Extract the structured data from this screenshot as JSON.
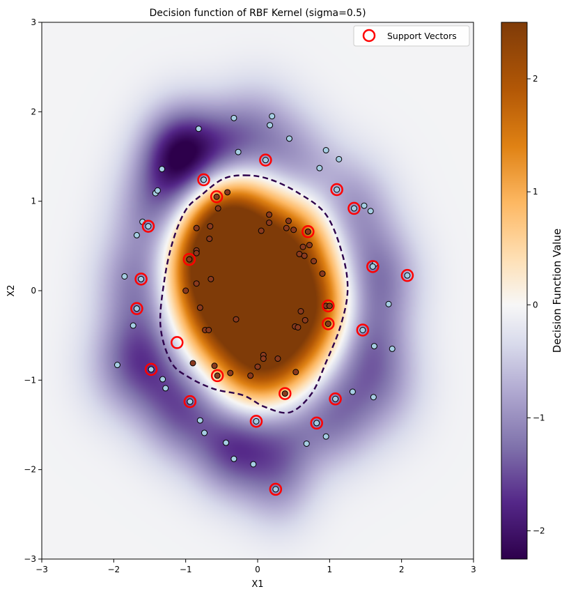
{
  "chart_data": {
    "type": "heatmap",
    "title": "Decision function of RBF Kernel (sigma=0.5)",
    "xlabel": "X1",
    "ylabel": "X2",
    "xlim": [
      -3,
      3
    ],
    "ylim": [
      -3,
      3
    ],
    "x_ticks": [
      -3,
      -2,
      -1,
      0,
      1,
      2,
      3
    ],
    "y_ticks": [
      -3,
      -2,
      -1,
      0,
      1,
      2,
      3
    ],
    "x_tick_labels": [
      "−3",
      "−2",
      "−1",
      "0",
      "1",
      "2",
      "3"
    ],
    "y_tick_labels": [
      "−3",
      "−2",
      "−1",
      "0",
      "1",
      "2",
      "3"
    ],
    "grid": false,
    "colormap": "PuOr_r",
    "colorbar": {
      "label": "Decision Function Value",
      "range": [
        -2.25,
        2.5
      ],
      "ticks": [
        -2,
        -1,
        0,
        1,
        2
      ],
      "tick_labels": [
        "−2",
        "−1",
        "0",
        "1",
        "2"
      ],
      "stops": [
        {
          "v": -2.25,
          "color": "#2d004b"
        },
        {
          "v": -1.75,
          "color": "#542788"
        },
        {
          "v": -1.25,
          "color": "#8073ac"
        },
        {
          "v": -0.75,
          "color": "#b2abd2"
        },
        {
          "v": -0.35,
          "color": "#d8daeb"
        },
        {
          "v": 0.0,
          "color": "#f7f7f7"
        },
        {
          "v": 0.4,
          "color": "#fee0b6"
        },
        {
          "v": 0.9,
          "color": "#fdb863"
        },
        {
          "v": 1.4,
          "color": "#e08214"
        },
        {
          "v": 1.9,
          "color": "#b35806"
        },
        {
          "v": 2.5,
          "color": "#7f3b08"
        }
      ]
    },
    "decision_boundary": {
      "level": 0,
      "style": "dashed",
      "color": "#2d004b",
      "points": [
        [
          -0.18,
          1.29
        ],
        [
          0.15,
          1.25
        ],
        [
          0.55,
          1.1
        ],
        [
          0.95,
          0.85
        ],
        [
          1.18,
          0.4
        ],
        [
          1.25,
          0.0
        ],
        [
          1.15,
          -0.4
        ],
        [
          0.95,
          -0.8
        ],
        [
          0.75,
          -1.15
        ],
        [
          0.45,
          -1.36
        ],
        [
          0.1,
          -1.3
        ],
        [
          -0.2,
          -1.17
        ],
        [
          -0.6,
          -1.1
        ],
        [
          -0.95,
          -0.97
        ],
        [
          -1.2,
          -0.8
        ],
        [
          -1.35,
          -0.4
        ],
        [
          -1.3,
          0.1
        ],
        [
          -1.18,
          0.55
        ],
        [
          -1.0,
          0.9
        ],
        [
          -0.78,
          1.07
        ],
        [
          -0.48,
          1.25
        ]
      ]
    },
    "legend": {
      "position": "top-right",
      "entries": [
        {
          "label": "Support Vectors",
          "marker": "open-circle",
          "color": "#ff0000"
        }
      ]
    },
    "classes": [
      {
        "name": "inner",
        "color": "#8a3a1e"
      },
      {
        "name": "outer",
        "color": "#a6cee3"
      }
    ],
    "points_inner": [
      [
        -0.95,
        0.35
      ],
      [
        -0.57,
        1.05
      ],
      [
        -0.42,
        1.1
      ],
      [
        -0.55,
        0.92
      ],
      [
        -0.85,
        0.7
      ],
      [
        -0.66,
        0.72
      ],
      [
        -0.67,
        0.58
      ],
      [
        -0.85,
        0.45
      ],
      [
        -0.85,
        0.42
      ],
      [
        -0.85,
        0.08
      ],
      [
        -1.0,
        0.0
      ],
      [
        -0.65,
        0.13
      ],
      [
        -0.8,
        -0.19
      ],
      [
        -0.73,
        -0.44
      ],
      [
        -0.68,
        -0.44
      ],
      [
        -0.3,
        -0.32
      ],
      [
        -0.9,
        -0.81
      ],
      [
        -0.6,
        -0.84
      ],
      [
        -0.56,
        -0.95
      ],
      [
        -0.38,
        -0.92
      ],
      [
        -0.1,
        -0.95
      ],
      [
        0.0,
        -0.85
      ],
      [
        0.08,
        -0.72
      ],
      [
        0.08,
        -0.76
      ],
      [
        0.28,
        -0.76
      ],
      [
        0.53,
        -0.91
      ],
      [
        0.38,
        -1.15
      ],
      [
        0.05,
        0.67
      ],
      [
        0.16,
        0.85
      ],
      [
        0.16,
        0.76
      ],
      [
        0.4,
        0.7
      ],
      [
        0.43,
        0.78
      ],
      [
        0.5,
        0.68
      ],
      [
        0.63,
        0.49
      ],
      [
        0.72,
        0.51
      ],
      [
        0.58,
        0.41
      ],
      [
        0.65,
        0.39
      ],
      [
        0.7,
        0.66
      ],
      [
        0.78,
        0.33
      ],
      [
        0.9,
        0.19
      ],
      [
        0.95,
        -0.17
      ],
      [
        0.98,
        -0.37
      ],
      [
        1.0,
        -0.17
      ],
      [
        0.6,
        -0.23
      ],
      [
        0.66,
        -0.33
      ],
      [
        0.52,
        -0.4
      ],
      [
        0.56,
        -0.41
      ]
    ],
    "points_outer": [
      [
        -0.82,
        1.81
      ],
      [
        -0.33,
        1.93
      ],
      [
        -0.27,
        1.55
      ],
      [
        0.17,
        1.85
      ],
      [
        0.2,
        1.95
      ],
      [
        0.44,
        1.7
      ],
      [
        0.95,
        1.57
      ],
      [
        0.86,
        1.37
      ],
      [
        1.13,
        1.47
      ],
      [
        1.1,
        1.13
      ],
      [
        1.34,
        0.92
      ],
      [
        1.48,
        0.95
      ],
      [
        1.57,
        0.89
      ],
      [
        1.63,
        0.3
      ],
      [
        1.6,
        0.27
      ],
      [
        2.08,
        0.17
      ],
      [
        1.82,
        -0.15
      ],
      [
        1.46,
        -0.44
      ],
      [
        1.62,
        -0.62
      ],
      [
        1.87,
        -0.65
      ],
      [
        1.32,
        -1.13
      ],
      [
        1.08,
        -1.21
      ],
      [
        1.61,
        -1.19
      ],
      [
        0.82,
        -1.48
      ],
      [
        0.68,
        -1.71
      ],
      [
        0.95,
        -1.63
      ],
      [
        -0.02,
        -1.46
      ],
      [
        -0.44,
        -1.7
      ],
      [
        -0.33,
        -1.88
      ],
      [
        -0.06,
        -1.94
      ],
      [
        0.25,
        -2.22
      ],
      [
        -0.94,
        -1.24
      ],
      [
        -0.8,
        -1.45
      ],
      [
        -0.74,
        -1.59
      ],
      [
        -1.32,
        -0.99
      ],
      [
        -1.28,
        -1.09
      ],
      [
        -1.48,
        -0.88
      ],
      [
        -1.68,
        -0.2
      ],
      [
        -1.73,
        -0.39
      ],
      [
        -1.95,
        -0.83
      ],
      [
        -1.62,
        0.13
      ],
      [
        -1.85,
        0.16
      ],
      [
        -1.52,
        0.72
      ],
      [
        -1.6,
        0.77
      ],
      [
        -1.68,
        0.62
      ],
      [
        -1.42,
        1.09
      ],
      [
        -1.39,
        1.12
      ],
      [
        -1.33,
        1.36
      ],
      [
        -0.75,
        1.24
      ],
      [
        0.11,
        1.46
      ]
    ],
    "support_vectors": [
      [
        0.11,
        1.46
      ],
      [
        -0.75,
        1.24
      ],
      [
        -0.57,
        1.05
      ],
      [
        1.1,
        1.13
      ],
      [
        1.34,
        0.92
      ],
      [
        -1.52,
        0.72
      ],
      [
        0.7,
        0.66
      ],
      [
        -0.95,
        0.35
      ],
      [
        1.6,
        0.27
      ],
      [
        2.08,
        0.17
      ],
      [
        -1.62,
        0.13
      ],
      [
        -1.68,
        -0.2
      ],
      [
        0.98,
        -0.17
      ],
      [
        0.98,
        -0.37
      ],
      [
        1.46,
        -0.44
      ],
      [
        -1.12,
        -0.58
      ],
      [
        -1.48,
        -0.88
      ],
      [
        -0.56,
        -0.95
      ],
      [
        0.38,
        -1.15
      ],
      [
        -0.94,
        -1.24
      ],
      [
        1.08,
        -1.21
      ],
      [
        -0.02,
        -1.46
      ],
      [
        0.82,
        -1.48
      ],
      [
        0.25,
        -2.22
      ]
    ],
    "field_bias": -0.05,
    "field_bumps": [
      {
        "x": -0.45,
        "y": 0.7,
        "w": 2.6,
        "s": 0.45
      },
      {
        "x": 0.0,
        "y": 0.05,
        "w": 2.1,
        "s": 0.6
      },
      {
        "x": 0.45,
        "y": -0.45,
        "w": 1.7,
        "s": 0.5
      },
      {
        "x": -0.55,
        "y": -0.25,
        "w": 1.5,
        "s": 0.45
      },
      {
        "x": 0.55,
        "y": 0.55,
        "w": 1.2,
        "s": 0.4
      },
      {
        "x": 0.0,
        "y": -0.95,
        "w": 1.1,
        "s": 0.4
      },
      {
        "x": 0.95,
        "y": -0.15,
        "w": 0.7,
        "s": 0.35
      },
      {
        "x": -0.9,
        "y": 0.25,
        "w": 0.8,
        "s": 0.35
      },
      {
        "x": -1.05,
        "y": 1.5,
        "w": -2.15,
        "s": 0.38
      },
      {
        "x": -0.45,
        "y": 1.55,
        "w": -0.9,
        "s": 0.35
      },
      {
        "x": 0.55,
        "y": 1.35,
        "w": -0.8,
        "s": 0.4
      },
      {
        "x": 1.3,
        "y": 0.9,
        "w": -0.9,
        "s": 0.4
      },
      {
        "x": 1.65,
        "y": 0.15,
        "w": -1.1,
        "s": 0.4
      },
      {
        "x": 1.5,
        "y": -0.6,
        "w": -1.0,
        "s": 0.4
      },
      {
        "x": 1.05,
        "y": -1.35,
        "w": -1.1,
        "s": 0.4
      },
      {
        "x": 0.3,
        "y": -1.6,
        "w": -1.0,
        "s": 0.4
      },
      {
        "x": -0.35,
        "y": -1.75,
        "w": -1.35,
        "s": 0.38
      },
      {
        "x": -1.05,
        "y": -1.3,
        "w": -1.3,
        "s": 0.4
      },
      {
        "x": -1.55,
        "y": -0.7,
        "w": -1.1,
        "s": 0.4
      },
      {
        "x": -1.65,
        "y": 0.1,
        "w": -1.0,
        "s": 0.4
      },
      {
        "x": -1.4,
        "y": 0.9,
        "w": -1.0,
        "s": 0.4
      },
      {
        "x": 0.0,
        "y": 1.75,
        "w": -0.8,
        "s": 0.4
      },
      {
        "x": 1.75,
        "y": -1.1,
        "w": -0.6,
        "s": 0.4
      },
      {
        "x": -1.9,
        "y": -0.9,
        "w": -0.5,
        "s": 0.4
      },
      {
        "x": 0.3,
        "y": -2.2,
        "w": -0.6,
        "s": 0.35
      }
    ]
  }
}
